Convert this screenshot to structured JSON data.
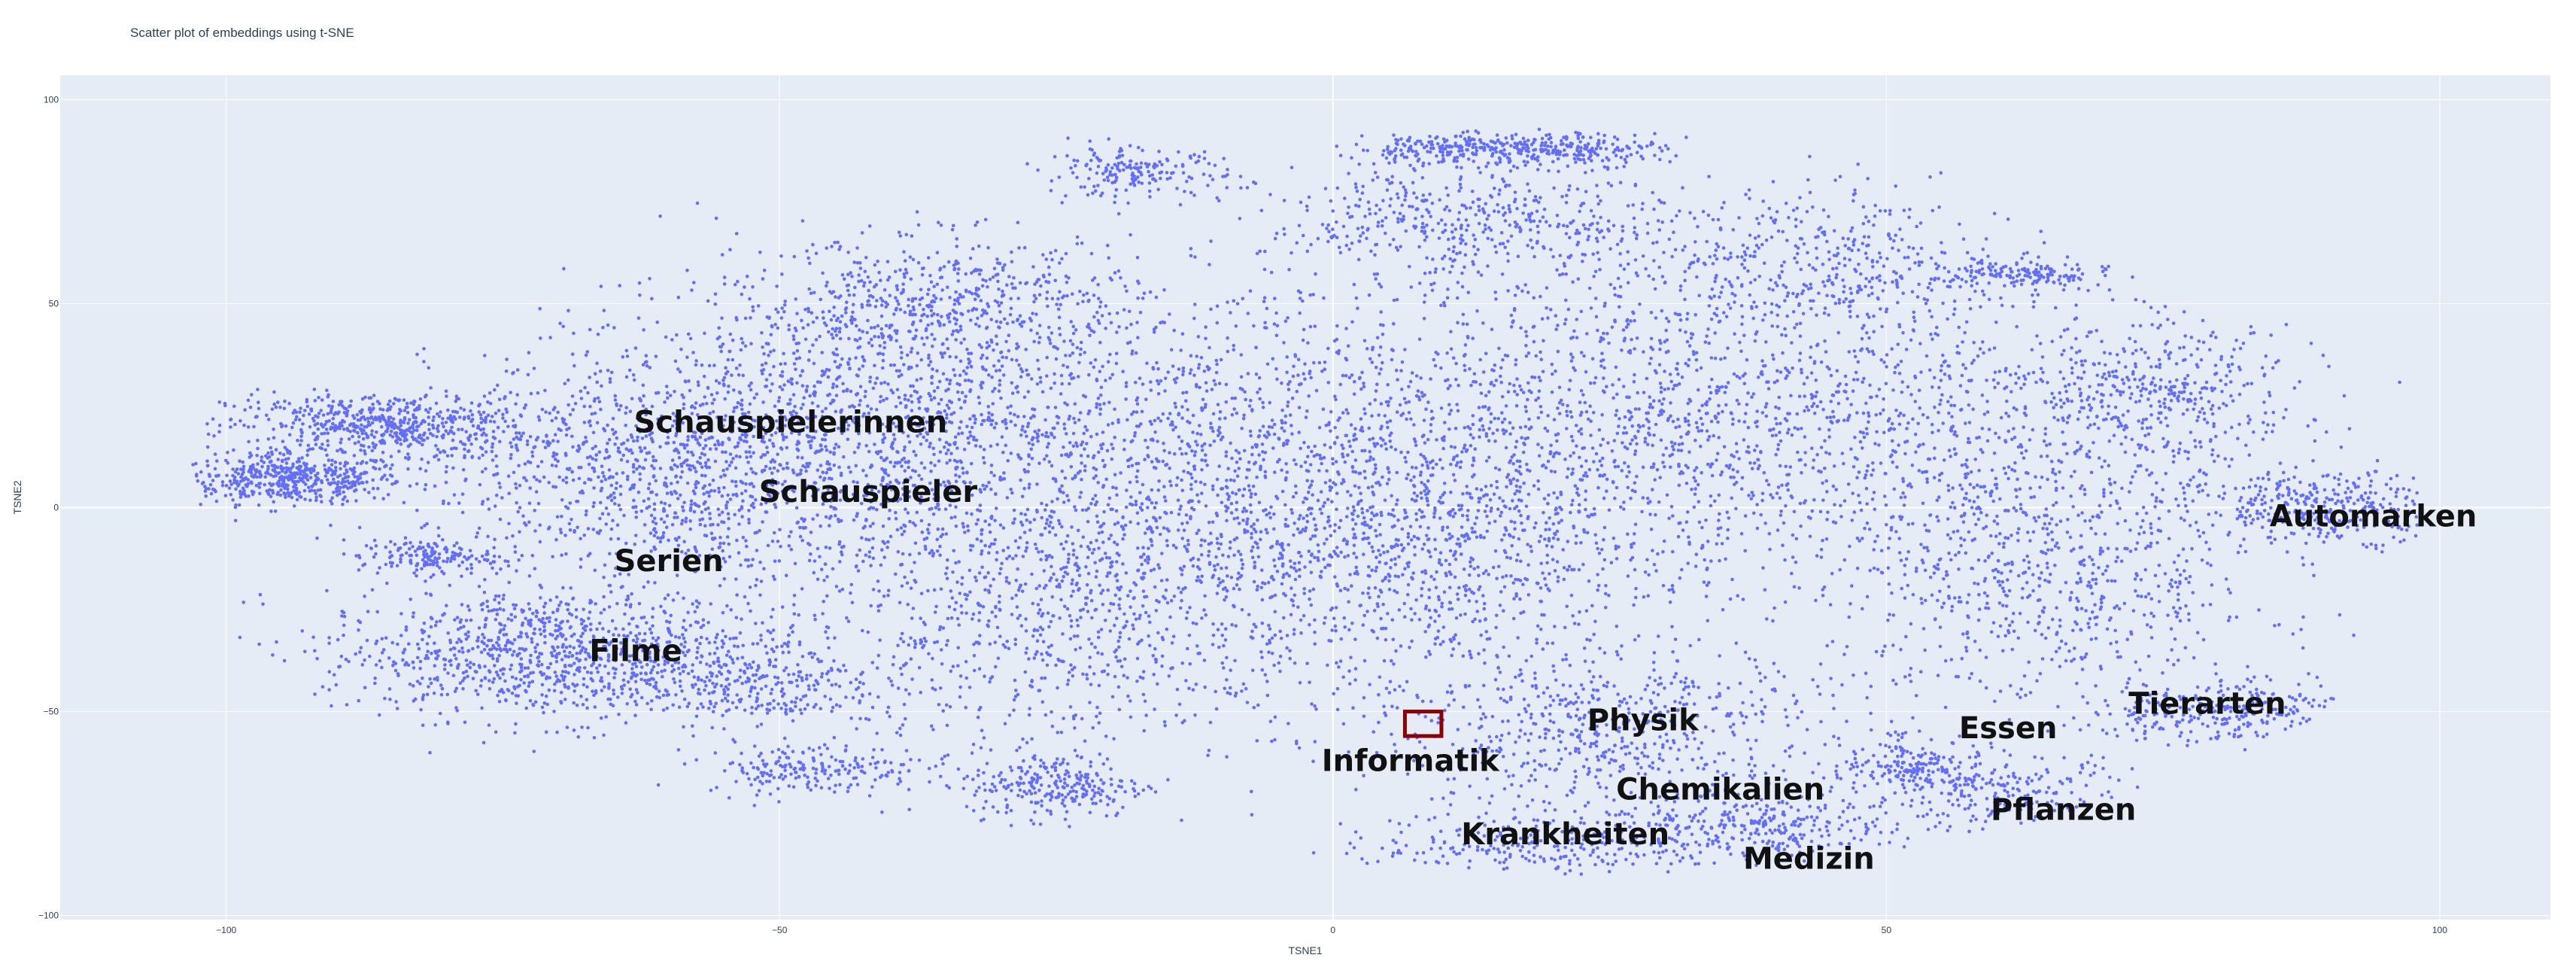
{
  "chart_data": {
    "type": "scatter",
    "title": "Scatter plot of embeddings using t-SNE",
    "xlabel": "TSNE1",
    "ylabel": "TSNE2",
    "xlim": [
      -115,
      110
    ],
    "ylim": [
      -101,
      106
    ],
    "grid": true,
    "x_ticks": [
      {
        "value": -100,
        "label": "−100"
      },
      {
        "value": -50,
        "label": "−50"
      },
      {
        "value": 0,
        "label": "0"
      },
      {
        "value": 50,
        "label": "50"
      },
      {
        "value": 100,
        "label": "100"
      }
    ],
    "y_ticks": [
      {
        "value": 100,
        "label": "100"
      },
      {
        "value": 50,
        "label": "50"
      },
      {
        "value": 0,
        "label": "0"
      },
      {
        "value": -50,
        "label": "−50"
      },
      {
        "value": -100,
        "label": "−100"
      }
    ],
    "colors": {
      "marker": "#636efa",
      "plot_bg": "#e5ecf6",
      "grid": "#ffffff",
      "highlight": "#8b0000",
      "label": "#111111"
    },
    "clusters": [
      {
        "cx": -94,
        "cy": 7,
        "sx": 5,
        "sy": 3,
        "n": 500
      },
      {
        "cx": -86,
        "cy": 20,
        "sx": 7,
        "sy": 4,
        "n": 600
      },
      {
        "cx": -70,
        "cy": -36,
        "sx": 11,
        "sy": 8,
        "n": 1100
      },
      {
        "cx": -62,
        "cy": 8,
        "sx": 10,
        "sy": 14,
        "n": 900
      },
      {
        "cx": -40,
        "cy": 20,
        "sx": 14,
        "sy": 18,
        "n": 1500
      },
      {
        "cx": -35,
        "cy": 50,
        "sx": 9,
        "sy": 8,
        "n": 500
      },
      {
        "cx": -25,
        "cy": -25,
        "sx": 12,
        "sy": 18,
        "n": 900
      },
      {
        "cx": -10,
        "cy": 10,
        "sx": 10,
        "sy": 20,
        "n": 800
      },
      {
        "cx": -25,
        "cy": -68,
        "sx": 4,
        "sy": 4,
        "n": 250
      },
      {
        "cx": -47,
        "cy": -64,
        "sx": 5,
        "sy": 3,
        "n": 200
      },
      {
        "cx": -82,
        "cy": -12,
        "sx": 3,
        "sy": 2,
        "n": 150
      },
      {
        "cx": -53,
        "cy": -45,
        "sx": 6,
        "sy": 4,
        "n": 200
      },
      {
        "cx": 8,
        "cy": -10,
        "sx": 10,
        "sy": 20,
        "n": 900
      },
      {
        "cx": 12,
        "cy": 70,
        "sx": 9,
        "sy": 7,
        "n": 450
      },
      {
        "cx": 22,
        "cy": 88,
        "sx": 4,
        "sy": 2,
        "n": 200
      },
      {
        "cx": 10,
        "cy": 88,
        "sx": 4,
        "sy": 2,
        "n": 200
      },
      {
        "cx": -18,
        "cy": 82,
        "sx": 4,
        "sy": 3,
        "n": 180
      },
      {
        "cx": 25,
        "cy": 20,
        "sx": 15,
        "sy": 20,
        "n": 1200
      },
      {
        "cx": 25,
        "cy": -55,
        "sx": 10,
        "sy": 10,
        "n": 600
      },
      {
        "cx": 20,
        "cy": -82,
        "sx": 8,
        "sy": 4,
        "n": 300
      },
      {
        "cx": 40,
        "cy": -78,
        "sx": 6,
        "sy": 4,
        "n": 250
      },
      {
        "cx": 42,
        "cy": 60,
        "sx": 9,
        "sy": 10,
        "n": 400
      },
      {
        "cx": 55,
        "cy": 20,
        "sx": 14,
        "sy": 20,
        "n": 900
      },
      {
        "cx": 65,
        "cy": -20,
        "sx": 10,
        "sy": 15,
        "n": 600
      },
      {
        "cx": 62,
        "cy": 57,
        "sx": 4,
        "sy": 2,
        "n": 150
      },
      {
        "cx": 90,
        "cy": 0,
        "sx": 6,
        "sy": 4,
        "n": 350
      },
      {
        "cx": 80,
        "cy": -50,
        "sx": 6,
        "sy": 4,
        "n": 300
      },
      {
        "cx": 60,
        "cy": -70,
        "sx": 6,
        "sy": 5,
        "n": 250
      },
      {
        "cx": 52,
        "cy": -63,
        "sx": 3,
        "sy": 3,
        "n": 150
      },
      {
        "cx": 75,
        "cy": 28,
        "sx": 6,
        "sy": 8,
        "n": 300
      }
    ],
    "annotations": [
      {
        "text": "Schauspielerinnen",
        "x": -49,
        "y": 21
      },
      {
        "text": "Schauspieler",
        "x": -42,
        "y": 4
      },
      {
        "text": "Serien",
        "x": -60,
        "y": -13
      },
      {
        "text": "Filme",
        "x": -63,
        "y": -35
      },
      {
        "text": "Automarken",
        "x": 94,
        "y": -2
      },
      {
        "text": "Tierarten",
        "x": 79,
        "y": -48
      },
      {
        "text": "Physik",
        "x": 28,
        "y": -52
      },
      {
        "text": "Essen",
        "x": 61,
        "y": -54
      },
      {
        "text": "Informatik",
        "x": 7,
        "y": -62
      },
      {
        "text": "Chemikalien",
        "x": 35,
        "y": -69
      },
      {
        "text": "Pflanzen",
        "x": 66,
        "y": -74
      },
      {
        "text": "Krankheiten",
        "x": 21,
        "y": -80
      },
      {
        "text": "Medizin",
        "x": 43,
        "y": -86
      }
    ],
    "highlight_box": {
      "x0": 6.5,
      "x1": 9.8,
      "y0": -56,
      "y1": -50
    }
  }
}
